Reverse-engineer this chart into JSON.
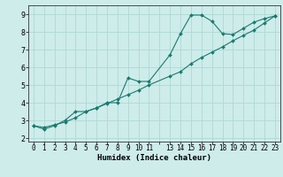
{
  "xlabel": "Humidex (Indice chaleur)",
  "ylabel": "",
  "bg_color": "#cdecea",
  "grid_color": "#b0d8d5",
  "line_color": "#1a7a6e",
  "xlim": [
    -0.5,
    23.5
  ],
  "ylim": [
    1.8,
    9.5
  ],
  "yticks": [
    2,
    3,
    4,
    5,
    6,
    7,
    8,
    9
  ],
  "line1_x": [
    0,
    1,
    2,
    3,
    4,
    5,
    6,
    7,
    8,
    9,
    10,
    11,
    13,
    14,
    15,
    16,
    17,
    18,
    19,
    20,
    21,
    22,
    23
  ],
  "line1_y": [
    2.7,
    2.5,
    2.7,
    3.0,
    3.5,
    3.5,
    3.7,
    4.0,
    4.0,
    5.4,
    5.2,
    5.2,
    6.7,
    7.9,
    8.95,
    8.95,
    8.6,
    7.9,
    7.85,
    8.2,
    8.55,
    8.75,
    8.9
  ],
  "line2_x": [
    0,
    1,
    2,
    3,
    4,
    5,
    6,
    7,
    8,
    9,
    10,
    11,
    13,
    14,
    15,
    16,
    17,
    18,
    19,
    20,
    21,
    22,
    23
  ],
  "line2_y": [
    2.7,
    2.6,
    2.75,
    2.9,
    3.15,
    3.5,
    3.7,
    3.95,
    4.2,
    4.45,
    4.7,
    5.0,
    5.5,
    5.75,
    6.2,
    6.55,
    6.85,
    7.15,
    7.5,
    7.8,
    8.1,
    8.5,
    8.9
  ]
}
